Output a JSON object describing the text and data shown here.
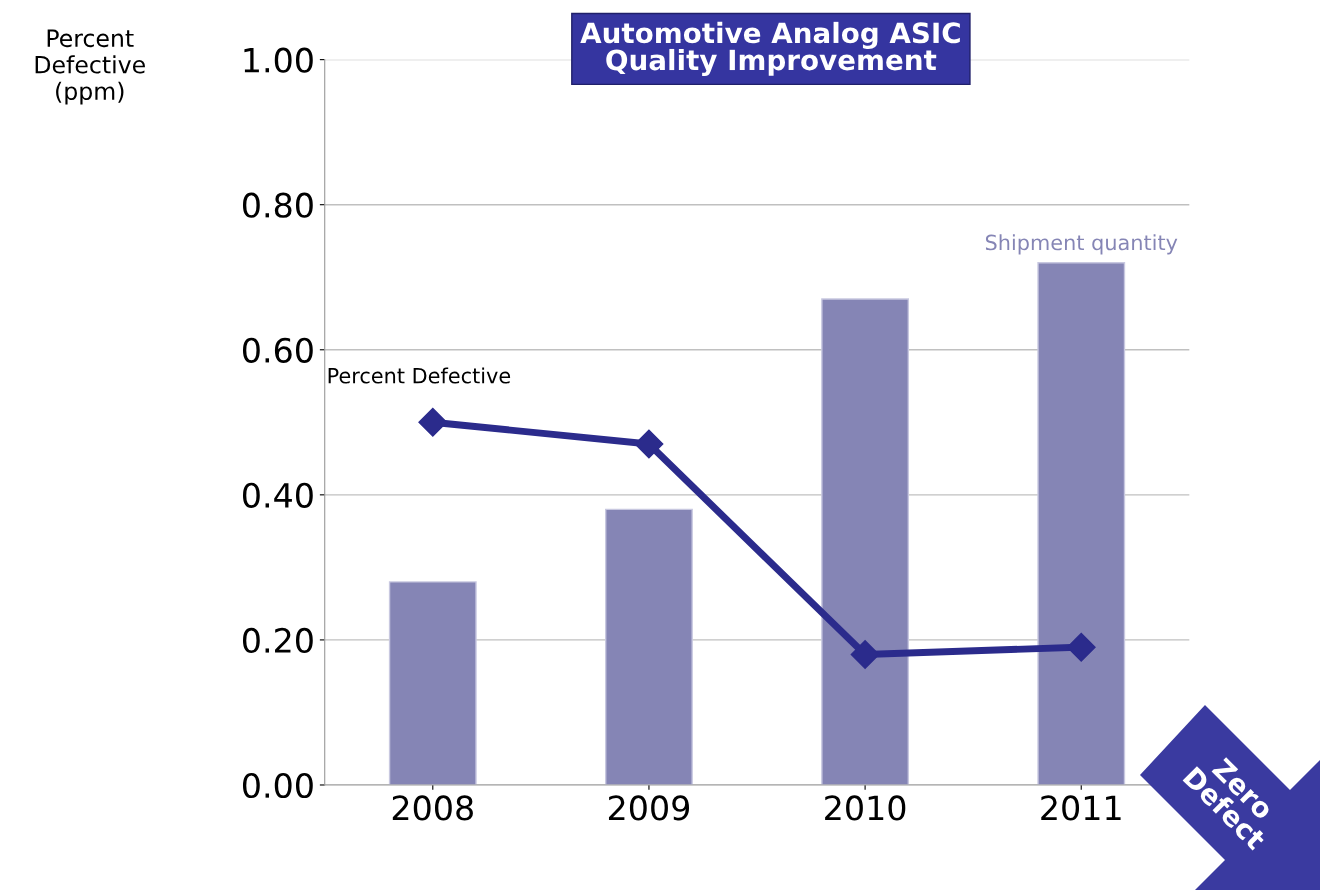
{
  "chart_data": {
    "type": "bar",
    "title": "Automotive Analog ASIC\nQuality Improvement",
    "ylabel": "Percent\nDefective\n(ppm)",
    "categories": [
      "2008",
      "2009",
      "2010",
      "2011"
    ],
    "series": [
      {
        "name": "Shipment quantity",
        "color": "#8585b5",
        "values": [
          0.28,
          0.38,
          0.67,
          0.72
        ]
      },
      {
        "name": "Percent Defective",
        "type": "line",
        "color": "#2b2b8c",
        "marker": "diamond",
        "values": [
          0.5,
          0.47,
          0.18,
          0.19
        ]
      }
    ],
    "ylim": [
      0,
      1
    ],
    "yticks": [
      {
        "value": 0,
        "label": "0.00"
      },
      {
        "value": 0.2,
        "label": "0.20"
      },
      {
        "value": 0.4,
        "label": "0.40"
      },
      {
        "value": 0.6,
        "label": "0.60"
      },
      {
        "value": 0.8,
        "label": "0.80"
      },
      {
        "value": 1,
        "label": "1.00"
      }
    ],
    "grid": "y",
    "annotations": [
      "Zero\nDefect"
    ]
  }
}
